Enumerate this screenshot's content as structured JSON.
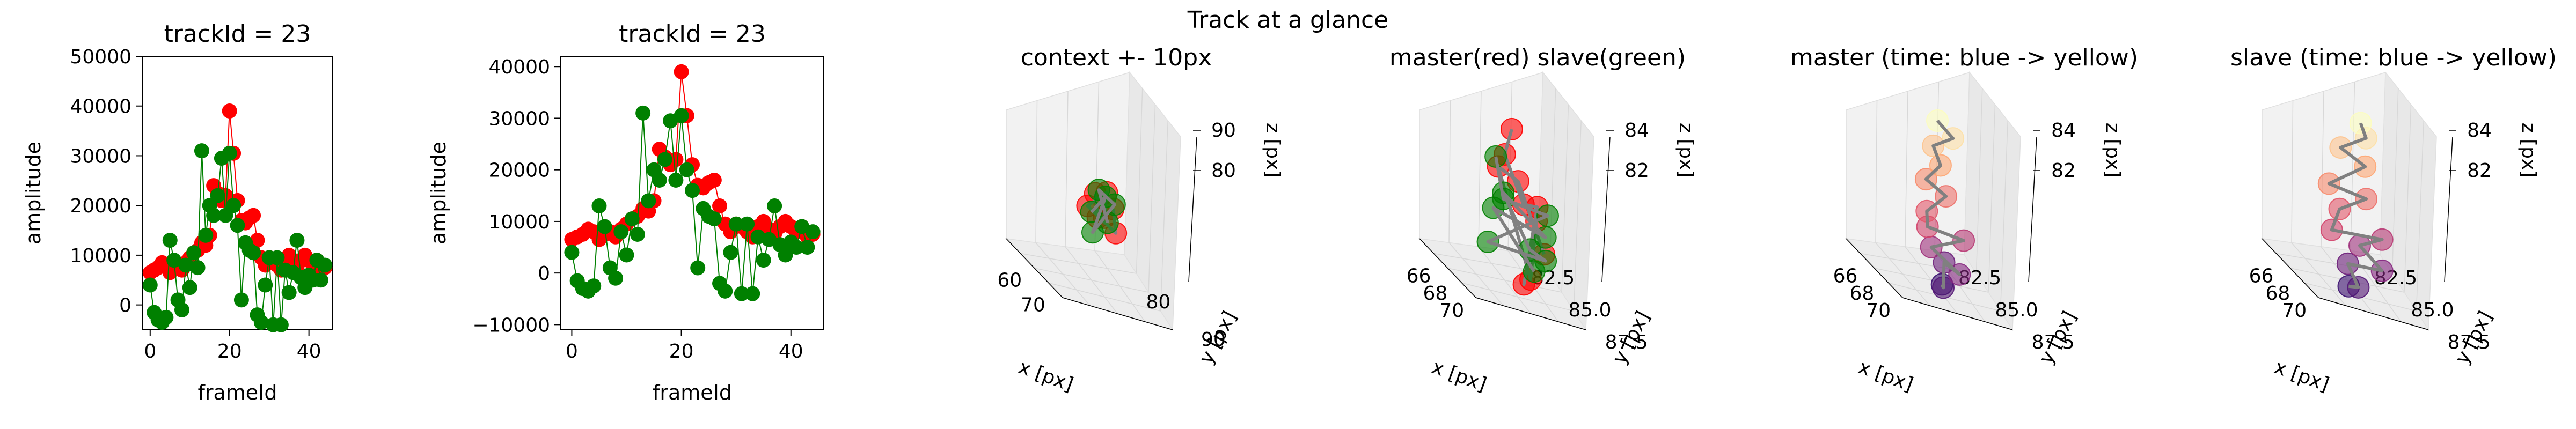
{
  "figure": {
    "suptitle": "Track at a glance"
  },
  "chart_data": [
    {
      "type": "line",
      "title": "trackId = 23",
      "xlabel": "frameId",
      "ylabel": "amplitude",
      "xlim": [
        -2,
        46
      ],
      "ylim": [
        -5000,
        50000
      ],
      "xticks": [
        0,
        20,
        40
      ],
      "yticks": [
        0,
        10000,
        20000,
        30000,
        40000,
        50000
      ],
      "series": [
        {
          "color": "#ff0000",
          "x": [
            0,
            1,
            2,
            3,
            4,
            5,
            6,
            7,
            8,
            9,
            10,
            11,
            12,
            13,
            14,
            15,
            16,
            17,
            18,
            19,
            20,
            21,
            22,
            23,
            24,
            25,
            26,
            27,
            28,
            29,
            30,
            31,
            32,
            33,
            34,
            35,
            36,
            37,
            38,
            39,
            40,
            41,
            42,
            43,
            44
          ],
          "values": [
            6500,
            7000,
            7500,
            8500,
            8000,
            6500,
            7500,
            8000,
            7000,
            8500,
            9500,
            10500,
            11000,
            12500,
            12000,
            14000,
            24000,
            22500,
            21000,
            22000,
            39000,
            30500,
            21000,
            17000,
            16500,
            17500,
            18000,
            13000,
            9500,
            8000,
            9500,
            9000,
            8000,
            7000,
            9000,
            10000,
            8500,
            7500,
            9000,
            10000,
            9000,
            8000,
            9000,
            7000,
            7500
          ]
        },
        {
          "color": "#008000",
          "x": [
            0,
            1,
            2,
            3,
            4,
            5,
            6,
            7,
            8,
            9,
            10,
            11,
            12,
            13,
            14,
            15,
            16,
            17,
            18,
            19,
            20,
            21,
            22,
            23,
            24,
            25,
            26,
            27,
            28,
            29,
            30,
            31,
            32,
            33,
            34,
            35,
            36,
            37,
            38,
            39,
            40,
            41,
            42,
            43,
            44
          ],
          "values": [
            4000,
            -1500,
            -3000,
            -3500,
            -2500,
            13000,
            9000,
            1000,
            -1000,
            8000,
            3500,
            10500,
            7500,
            31000,
            14000,
            20000,
            18000,
            22000,
            29500,
            18000,
            30500,
            20000,
            16000,
            1000,
            12500,
            11000,
            10500,
            -2000,
            -3500,
            4000,
            9500,
            -4000,
            9500,
            -4000,
            7000,
            2500,
            6500,
            13000,
            5500,
            3500,
            6000,
            5000,
            9000,
            5000,
            8000
          ]
        }
      ]
    },
    {
      "type": "line",
      "title": "trackId = 23",
      "xlabel": "frameId",
      "ylabel": "amplitude",
      "xlim": [
        -2,
        46
      ],
      "ylim": [
        -11000,
        42000
      ],
      "xticks": [
        0,
        20,
        40
      ],
      "yticks": [
        -10000,
        0,
        10000,
        20000,
        30000,
        40000
      ],
      "series": [
        {
          "color": "#ff0000",
          "x": [
            0,
            1,
            2,
            3,
            4,
            5,
            6,
            7,
            8,
            9,
            10,
            11,
            12,
            13,
            14,
            15,
            16,
            17,
            18,
            19,
            20,
            21,
            22,
            23,
            24,
            25,
            26,
            27,
            28,
            29,
            30,
            31,
            32,
            33,
            34,
            35,
            36,
            37,
            38,
            39,
            40,
            41,
            42,
            43,
            44
          ],
          "values": [
            6500,
            7000,
            7500,
            8500,
            8000,
            6500,
            7500,
            8000,
            7000,
            8500,
            9500,
            10500,
            11000,
            12500,
            12000,
            14000,
            24000,
            22500,
            21000,
            22000,
            39000,
            30500,
            21000,
            17000,
            16500,
            17500,
            18000,
            13000,
            9500,
            8000,
            9500,
            9000,
            8000,
            7000,
            9000,
            10000,
            8500,
            7500,
            9000,
            10000,
            9000,
            8000,
            9000,
            7000,
            7500
          ]
        },
        {
          "color": "#008000",
          "x": [
            0,
            1,
            2,
            3,
            4,
            5,
            6,
            7,
            8,
            9,
            10,
            11,
            12,
            13,
            14,
            15,
            16,
            17,
            18,
            19,
            20,
            21,
            22,
            23,
            24,
            25,
            26,
            27,
            28,
            29,
            30,
            31,
            32,
            33,
            34,
            35,
            36,
            37,
            38,
            39,
            40,
            41,
            42,
            43,
            44
          ],
          "values": [
            4000,
            -1500,
            -3000,
            -3500,
            -2500,
            13000,
            9000,
            1000,
            -1000,
            8000,
            3500,
            10500,
            7500,
            31000,
            14000,
            20000,
            18000,
            22000,
            29500,
            18000,
            30500,
            20000,
            16000,
            1000,
            12500,
            11000,
            10500,
            -2000,
            -3500,
            4000,
            9500,
            -4000,
            9500,
            -4000,
            7000,
            2500,
            6500,
            13000,
            5500,
            3500,
            6000,
            5000,
            9000,
            5000,
            8000
          ]
        }
      ]
    },
    {
      "type": "scatter",
      "projection": "3d",
      "title": "context +- 10px",
      "xlabel": "x [px]",
      "ylabel": "y [px]",
      "zlabel": "z [px]",
      "xticks": [
        "60",
        "70"
      ],
      "yticks": [
        "80",
        "90"
      ],
      "zticks": [
        "80",
        "90"
      ],
      "series": [
        {
          "color": "#ff0000",
          "points": [
            [
              71,
              86,
              84
            ],
            [
              72,
              85,
              83
            ],
            [
              71.5,
              86.5,
              82.5
            ],
            [
              72.5,
              85.5,
              84.5
            ],
            [
              71,
              85,
              83.5
            ],
            [
              73,
              86,
              82
            ],
            [
              72,
              87,
              83
            ]
          ]
        },
        {
          "color": "#008000",
          "points": [
            [
              71,
              85.5,
              83
            ],
            [
              72,
              86,
              84
            ],
            [
              71.5,
              85,
              82
            ],
            [
              72.5,
              86.5,
              83.5
            ],
            [
              71.2,
              86.2,
              84.2
            ],
            [
              72.8,
              85.2,
              82.8
            ]
          ]
        }
      ]
    },
    {
      "type": "scatter",
      "projection": "3d",
      "title": "master(red) slave(green)",
      "xlabel": "x [px]",
      "ylabel": "y [px]",
      "zlabel": "z [px]",
      "xticks": [
        "66",
        "68",
        "70"
      ],
      "yticks": [
        "82.5",
        "85.0",
        "87.5"
      ],
      "zticks": [
        "82",
        "84"
      ],
      "series": [
        {
          "color": "#ff0000",
          "points": [
            [
              67.5,
              86,
              86
            ],
            [
              68.2,
              84.5,
              85.6
            ],
            [
              70.5,
              83.2,
              84.6
            ],
            [
              69.4,
              85.8,
              83.8
            ],
            [
              71,
              82.6,
              82.2
            ],
            [
              68.8,
              86.5,
              83.1
            ],
            [
              70.2,
              84.2,
              81.9
            ],
            [
              67.2,
              85.2,
              84.9
            ],
            [
              69.9,
              83.5,
              85.2
            ],
            [
              71.2,
              84.1,
              82.9
            ]
          ]
        },
        {
          "color": "#008000",
          "points": [
            [
              66.8,
              85.5,
              85.1
            ],
            [
              68.5,
              84,
              84.3
            ],
            [
              69.8,
              86.2,
              83.5
            ],
            [
              67.6,
              83.8,
              82.8
            ],
            [
              70.6,
              85,
              82.4
            ],
            [
              68.1,
              86.8,
              82
            ],
            [
              69.2,
              83.1,
              84.8
            ],
            [
              70.9,
              84.6,
              83.3
            ],
            [
              67.1,
              84.9,
              83.6
            ],
            [
              69.5,
              85.4,
              81.8
            ]
          ]
        }
      ]
    },
    {
      "type": "scatter",
      "projection": "3d",
      "title": "master (time: blue -> yellow)",
      "xlabel": "x [px]",
      "ylabel": "y [px]",
      "zlabel": "z [px]",
      "xticks": [
        "66",
        "68",
        "70"
      ],
      "yticks": [
        "82.5",
        "85.0",
        "87.5"
      ],
      "zticks": [
        "82",
        "84"
      ],
      "colormap": [
        "#3b0f70",
        "#8c2981",
        "#de4968",
        "#fe9f6d",
        "#fcfdbf"
      ],
      "series": [
        {
          "points": [
            [
              69.5,
              84.5,
              81.9
            ],
            [
              70.2,
              83.8,
              82.1
            ],
            [
              69.0,
              85.2,
              82.3
            ],
            [
              70.8,
              84.2,
              82.5
            ],
            [
              68.6,
              84.8,
              82.8
            ],
            [
              69.8,
              85.6,
              83.0
            ],
            [
              68.2,
              85.0,
              83.3
            ],
            [
              67.8,
              85.4,
              83.6
            ],
            [
              68.4,
              86.0,
              84.0
            ],
            [
              67.4,
              85.8,
              84.4
            ],
            [
              67.9,
              86.2,
              84.8
            ],
            [
              67.2,
              86.5,
              85.2
            ],
            [
              68.1,
              86.8,
              85.5
            ],
            [
              67.0,
              87.0,
              85.8
            ]
          ]
        }
      ]
    },
    {
      "type": "scatter",
      "projection": "3d",
      "title": "slave (time: blue -> yellow)",
      "xlabel": "x [px]",
      "ylabel": "y [px]",
      "zlabel": "z [px]",
      "xticks": [
        "66",
        "68",
        "70"
      ],
      "yticks": [
        "82.5",
        "85.0",
        "87.5"
      ],
      "zticks": [
        "82",
        "84"
      ],
      "colormap": [
        "#3b0f70",
        "#8c2981",
        "#de4968",
        "#fe9f6d",
        "#fcfdbf"
      ],
      "series": [
        {
          "points": [
            [
              69.2,
              84.0,
              82.0
            ],
            [
              70.0,
              83.6,
              82.2
            ],
            [
              68.6,
              84.8,
              82.4
            ],
            [
              70.6,
              84.6,
              82.6
            ],
            [
              68.9,
              85.3,
              82.9
            ],
            [
              69.7,
              85.9,
              83.1
            ],
            [
              68.0,
              84.4,
              83.4
            ],
            [
              67.6,
              85.6,
              83.7
            ],
            [
              68.7,
              86.1,
              84.1
            ],
            [
              67.3,
              85.2,
              84.5
            ],
            [
              68.3,
              86.6,
              84.9
            ],
            [
              67.1,
              86.4,
              85.3
            ],
            [
              68.0,
              87.1,
              85.6
            ],
            [
              67.5,
              87.4,
              85.9
            ]
          ]
        }
      ]
    }
  ]
}
